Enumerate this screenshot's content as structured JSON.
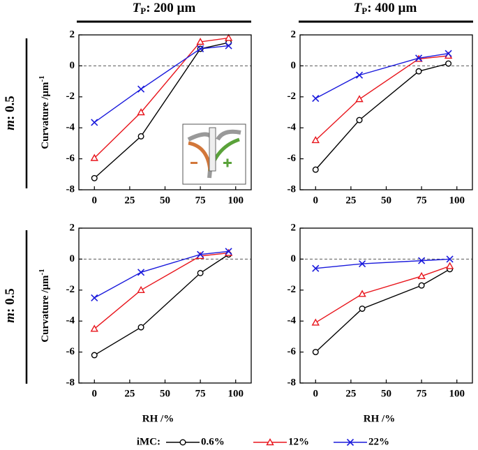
{
  "column_headers": [
    {
      "symbol": "T",
      "subscript": "P",
      "text": ": 200 µm"
    },
    {
      "symbol": "T",
      "subscript": "P",
      "text": ": 400 µm"
    }
  ],
  "row_labels": [
    {
      "symbol": "m",
      "text": ": 0.5"
    },
    {
      "symbol": "m",
      "text": ": 0.5"
    }
  ],
  "legend_title": "iMC:",
  "chart_data": [
    {
      "type": "line",
      "ylabel": {
        "text": "Curvature /µm",
        "sup": "-1"
      },
      "x": [
        0,
        33,
        75,
        95
      ],
      "xlim": [
        -11,
        111
      ],
      "ylim": [
        -8,
        2
      ],
      "xticks": [
        0,
        25,
        50,
        75,
        100
      ],
      "yticks": [
        -8,
        -6,
        -4,
        -2,
        0,
        2
      ],
      "zero_line": true,
      "series": [
        {
          "name": "0.6%",
          "color": "#000000",
          "marker": "circle",
          "values": [
            -7.25,
            -4.55,
            1.1,
            1.5
          ]
        },
        {
          "name": "12%",
          "color": "#e8141b",
          "marker": "triangle",
          "values": [
            -5.95,
            -3.0,
            1.55,
            1.8
          ]
        },
        {
          "name": "22%",
          "color": "#1a1adc",
          "marker": "x",
          "values": [
            -3.65,
            -1.5,
            1.1,
            1.3
          ]
        }
      ]
    },
    {
      "type": "line",
      "x": [
        0,
        31,
        73,
        94
      ],
      "xlim": [
        -11,
        111
      ],
      "ylim": [
        -8,
        2
      ],
      "xticks": [
        0,
        25,
        50,
        75,
        100
      ],
      "yticks": [
        -8,
        -6,
        -4,
        -2,
        0,
        2
      ],
      "zero_line": true,
      "series": [
        {
          "name": "0.6%",
          "color": "#000000",
          "marker": "circle",
          "values": [
            -6.7,
            -3.5,
            -0.35,
            0.15
          ]
        },
        {
          "name": "12%",
          "color": "#e8141b",
          "marker": "triangle",
          "values": [
            -4.8,
            -2.15,
            0.45,
            0.65
          ]
        },
        {
          "name": "22%",
          "color": "#1a1adc",
          "marker": "x",
          "values": [
            -2.1,
            -0.6,
            0.5,
            0.8
          ]
        }
      ]
    },
    {
      "type": "line",
      "ylabel": {
        "text": "Curvature /µm",
        "sup": "-1"
      },
      "xlabel": "RH /%",
      "x": [
        0,
        33,
        75,
        95
      ],
      "xlim": [
        -11,
        111
      ],
      "ylim": [
        -8,
        2
      ],
      "xticks": [
        0,
        25,
        50,
        75,
        100
      ],
      "yticks": [
        -8,
        -6,
        -4,
        -2,
        0,
        2
      ],
      "zero_line": true,
      "series": [
        {
          "name": "0.6%",
          "color": "#000000",
          "marker": "circle",
          "values": [
            -6.2,
            -4.4,
            -0.9,
            0.3
          ]
        },
        {
          "name": "12%",
          "color": "#e8141b",
          "marker": "triangle",
          "values": [
            -4.5,
            -2.0,
            0.2,
            0.4
          ]
        },
        {
          "name": "22%",
          "color": "#1a1adc",
          "marker": "x",
          "values": [
            -2.5,
            -0.85,
            0.3,
            0.5
          ]
        }
      ]
    },
    {
      "type": "line",
      "xlabel": "RH /%",
      "x": [
        0,
        33,
        75,
        95
      ],
      "xlim": [
        -11,
        111
      ],
      "ylim": [
        -8,
        2
      ],
      "xticks": [
        0,
        25,
        50,
        75,
        100
      ],
      "yticks": [
        -8,
        -6,
        -4,
        -2,
        0,
        2
      ],
      "zero_line": true,
      "series": [
        {
          "name": "0.6%",
          "color": "#000000",
          "marker": "circle",
          "values": [
            -6.0,
            -3.2,
            -1.7,
            -0.65
          ]
        },
        {
          "name": "12%",
          "color": "#e8141b",
          "marker": "triangle",
          "values": [
            -4.1,
            -2.25,
            -1.1,
            -0.45
          ]
        },
        {
          "name": "22%",
          "color": "#1a1adc",
          "marker": "x",
          "values": [
            -0.6,
            -0.3,
            -0.1,
            0.0
          ]
        }
      ]
    }
  ]
}
